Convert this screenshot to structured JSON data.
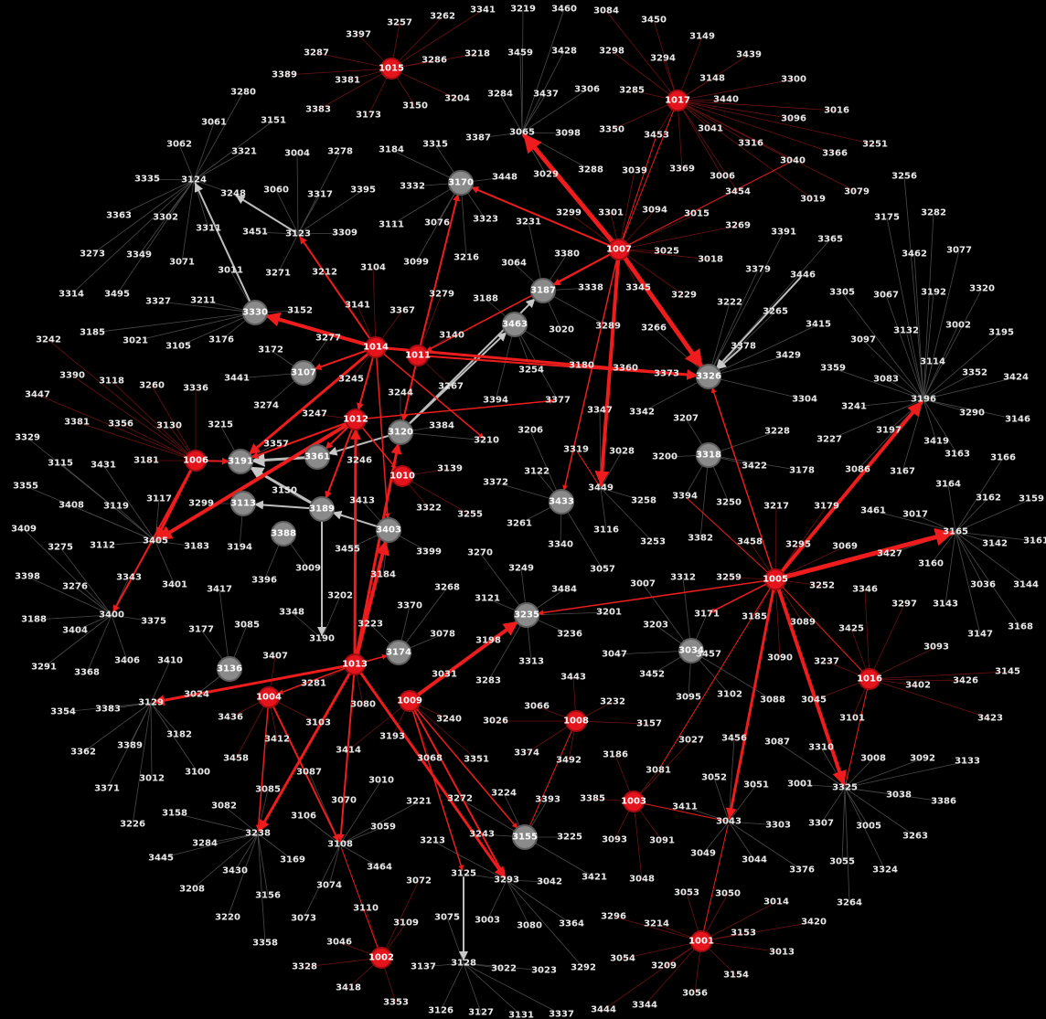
{
  "colors": {
    "background": "#000000",
    "red_node": "#e5141c",
    "red_stroke": "#a30d12",
    "gray_node": "#8a8a8a",
    "gray_stroke": "#5e5e5e",
    "thin_edge": "#4a4a4a",
    "red_edge": "#ee1c1c",
    "gray_edge": "#bdbdbd"
  },
  "red_nodes": [
    "1001",
    "1002",
    "1003",
    "1004",
    "1005",
    "1006",
    "1007",
    "1008",
    "1009",
    "1010",
    "1011",
    "1012",
    "1013",
    "1014",
    "1015",
    "1016",
    "1017"
  ],
  "gray_nodes": [
    "3034",
    "3107",
    "3113",
    "3120",
    "3136",
    "3155",
    "3170",
    "3174",
    "3187",
    "3189",
    "3191",
    "3235",
    "3318",
    "3326",
    "3330",
    "3361",
    "3388",
    "3403",
    "3433",
    "3463"
  ],
  "hub_labels": [
    "3065",
    "3129",
    "3196",
    "3238",
    "3293",
    "3325",
    "3400",
    "3405",
    "3449",
    "3165",
    "3043",
    "3108",
    "3128",
    "3124",
    "3190",
    "3123"
  ],
  "leaf_labels": [
    "3257",
    "3262",
    "3341",
    "3219",
    "3460",
    "3084",
    "3450",
    "3149",
    "3397",
    "3287",
    "3286",
    "3218",
    "3459",
    "3428",
    "3298",
    "3294",
    "3439",
    "3389",
    "3381",
    "3148",
    "3300",
    "3280",
    "3383",
    "3173",
    "3150",
    "3204",
    "3284",
    "3437",
    "3306",
    "3285",
    "3440",
    "3016",
    "3061",
    "3151",
    "3387",
    "3098",
    "3350",
    "3453",
    "3041",
    "3096",
    "3062",
    "3321",
    "3004",
    "3278",
    "3184",
    "3315",
    "3316",
    "3366",
    "3251",
    "3335",
    "3248",
    "3060",
    "3317",
    "3395",
    "3332",
    "3448",
    "3029",
    "3288",
    "3039",
    "3369",
    "3006",
    "3040",
    "3256",
    "3363",
    "3302",
    "3311",
    "3451",
    "3309",
    "3111",
    "3076",
    "3323",
    "3231",
    "3299",
    "3301",
    "3094",
    "3015",
    "3454",
    "3019",
    "3079",
    "3282",
    "3273",
    "3349",
    "3071",
    "3011",
    "3271",
    "3212",
    "3104",
    "3099",
    "3216",
    "3064",
    "3380",
    "3025",
    "3018",
    "3269",
    "3391",
    "3175",
    "3077",
    "3462",
    "3314",
    "3495",
    "3327",
    "3211",
    "3152",
    "3141",
    "3367",
    "3279",
    "3188",
    "3338",
    "3345",
    "3379",
    "3446",
    "3365",
    "3305",
    "3067",
    "3192",
    "3320",
    "3242",
    "3185",
    "3021",
    "3105",
    "3176",
    "3172",
    "3277",
    "3140",
    "3020",
    "3289",
    "3266",
    "3229",
    "3222",
    "3265",
    "3002",
    "3195",
    "3390",
    "3118",
    "3260",
    "3336",
    "3441",
    "3245",
    "3267",
    "3254",
    "3180",
    "3360",
    "3373",
    "3415",
    "3378",
    "3429",
    "3359",
    "3097",
    "3132",
    "3114",
    "3352",
    "3424",
    "3447",
    "3274",
    "3244",
    "3394",
    "3377",
    "3347",
    "3342",
    "3207",
    "3304",
    "3083",
    "3290",
    "3146",
    "3381b",
    "3356",
    "3130",
    "3215",
    "3247",
    "3384",
    "3206",
    "3319",
    "3228",
    "3227",
    "3241",
    "3197",
    "3419",
    "3329",
    "3115",
    "3431",
    "3181",
    "3357",
    "3246",
    "3210",
    "3139",
    "3372",
    "3122",
    "3028",
    "3200",
    "3422",
    "3178",
    "3086",
    "3167",
    "3163",
    "3166",
    "3355",
    "3408",
    "3119",
    "3117",
    "3299b",
    "3150b",
    "3413",
    "3322",
    "3255",
    "3261",
    "3258",
    "3394b",
    "3250",
    "3217",
    "3179",
    "3461",
    "3017",
    "3164",
    "3162",
    "3159",
    "3409",
    "3275",
    "3112",
    "3183",
    "3194",
    "3455",
    "3399",
    "3270",
    "3116",
    "3253",
    "3382",
    "3458",
    "3295",
    "3069",
    "3427",
    "3160",
    "3142",
    "3161",
    "3398",
    "3276",
    "3343",
    "3401",
    "3417",
    "3396",
    "3009",
    "3184b",
    "3249",
    "3340",
    "3057",
    "3268",
    "3484",
    "3007",
    "3312",
    "3259",
    "3252",
    "3346",
    "3036",
    "3144",
    "3188b",
    "3404",
    "3375",
    "3177",
    "3085",
    "3348",
    "3202",
    "3370",
    "3121",
    "3201",
    "3203",
    "3171",
    "3185b",
    "3089",
    "3297",
    "3143",
    "3168",
    "3291",
    "3406",
    "3368",
    "3410",
    "3407",
    "3223",
    "3078",
    "3236",
    "3047",
    "3457",
    "3425",
    "3093",
    "3147",
    "3281",
    "3198",
    "3313",
    "3443",
    "3452",
    "3090",
    "3237",
    "3426",
    "3145",
    "3354",
    "3383b",
    "3024",
    "3436",
    "3080",
    "3031",
    "3283",
    "3232",
    "3095",
    "3102",
    "3088",
    "3045",
    "3402",
    "3182",
    "3412",
    "3103",
    "3240",
    "3026",
    "3066",
    "3157",
    "3456",
    "3087",
    "3101",
    "3423",
    "3362",
    "3389b",
    "3458b",
    "3414",
    "3193",
    "3374",
    "3492",
    "3186",
    "3027",
    "3310",
    "3008",
    "3092",
    "3133",
    "3012",
    "3100",
    "3087b",
    "3010",
    "3068",
    "3351",
    "3081",
    "3052",
    "3051",
    "3001",
    "3371",
    "3085b",
    "3070",
    "3221",
    "3272",
    "3224",
    "3393",
    "3385",
    "3411",
    "3038",
    "3386",
    "3158",
    "3082",
    "3106",
    "3059",
    "3213",
    "3243",
    "3225",
    "3093b",
    "3091",
    "3303",
    "3307",
    "3005",
    "3226",
    "3284b",
    "3464",
    "3125",
    "3042",
    "3421",
    "3048",
    "3049",
    "3044",
    "3376",
    "3055",
    "3263",
    "3445",
    "3430",
    "3169",
    "3074",
    "3072",
    "3053",
    "3050",
    "3014",
    "3324",
    "3208",
    "3156",
    "3110",
    "3109",
    "3075",
    "3003",
    "3080b",
    "3364",
    "3296",
    "3214",
    "3420",
    "3264",
    "3220",
    "3073",
    "3046",
    "3054",
    "3153",
    "3013",
    "3358",
    "3328",
    "3137",
    "3022",
    "3023",
    "3292",
    "3209",
    "3154",
    "3418",
    "3056",
    "3353",
    "3126",
    "3127",
    "3131",
    "3337",
    "3444",
    "3344"
  ]
}
